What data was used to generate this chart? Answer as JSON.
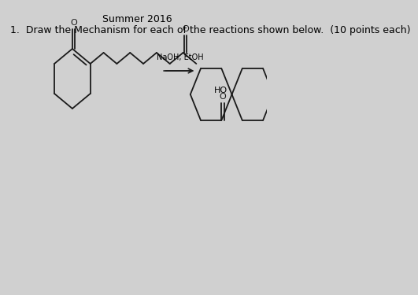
{
  "title": "Summer 2016",
  "question": "1.  Draw the Mechanism for each of the reactions shown below.  (10 points each)",
  "reagent": "NaOH, EtOH",
  "background_color": "#d0d0d0",
  "text_color": "#000000",
  "line_color": "#1a1a1a",
  "title_fontsize": 9,
  "question_fontsize": 9,
  "reagent_fontsize": 7
}
